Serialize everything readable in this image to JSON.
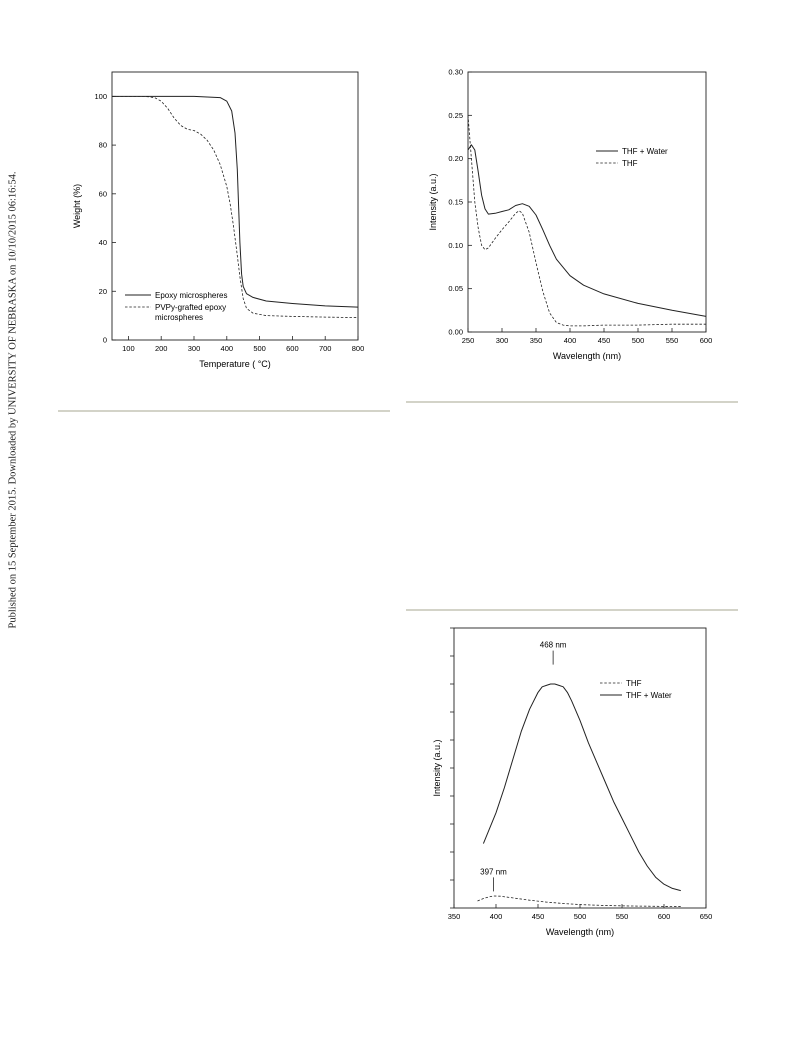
{
  "side_note": "Published on 15 September 2015. Downloaded by UNIVERSITY OF NEBRASKA on 10/10/2015 06:16:54.",
  "colors": {
    "rule": "#d3d3c8",
    "line": "#222222"
  },
  "chart_data": [
    {
      "type": "line",
      "title": "",
      "xlabel": "Temperature ( °C)",
      "ylabel": "Weight (%)",
      "xlim": [
        50,
        800
      ],
      "ylim": [
        0,
        110
      ],
      "xticks": [
        100,
        200,
        300,
        400,
        500,
        600,
        700,
        800
      ],
      "yticks": [
        0,
        20,
        40,
        60,
        80,
        100
      ],
      "legend_position": "bottom-left",
      "series": [
        {
          "name": "Epoxy microspheres",
          "style": "solid",
          "x": [
            50,
            150,
            300,
            380,
            400,
            415,
            425,
            432,
            436,
            440,
            445,
            450,
            460,
            480,
            520,
            600,
            700,
            800
          ],
          "y": [
            100,
            100,
            100,
            99.5,
            98,
            94,
            85,
            70,
            55,
            40,
            27,
            22,
            19,
            17.5,
            16,
            15,
            14,
            13.5
          ]
        },
        {
          "name": "PVPy-grafted epoxy microspheres",
          "style": "dashed",
          "x": [
            50,
            150,
            180,
            200,
            220,
            240,
            260,
            280,
            300,
            320,
            340,
            360,
            380,
            400,
            410,
            420,
            430,
            440,
            450,
            460,
            480,
            520,
            600,
            700,
            800
          ],
          "y": [
            100,
            100,
            99.5,
            98,
            95,
            91,
            88,
            86.5,
            86,
            84.5,
            82,
            78,
            72,
            63,
            56,
            47,
            37,
            26,
            17,
            13,
            11,
            10,
            9.7,
            9.4,
            9.2
          ]
        }
      ]
    },
    {
      "type": "line",
      "title": "",
      "xlabel": "Wavelength (nm)",
      "ylabel": "Intensity (a.u.)",
      "xlim": [
        250,
        600
      ],
      "ylim": [
        0,
        0.3
      ],
      "xticks": [
        250,
        300,
        350,
        400,
        450,
        500,
        550,
        600
      ],
      "yticks": [
        "0.00",
        "0.05",
        "0.10",
        "0.15",
        "0.20",
        "0.25",
        "0.30"
      ],
      "legend_position": "top-right",
      "series": [
        {
          "name": "THF + Water",
          "style": "solid",
          "x": [
            250,
            255,
            260,
            265,
            270,
            275,
            280,
            290,
            300,
            310,
            320,
            330,
            340,
            350,
            360,
            370,
            380,
            400,
            420,
            450,
            500,
            550,
            600
          ],
          "y": [
            0.21,
            0.216,
            0.21,
            0.185,
            0.158,
            0.142,
            0.136,
            0.137,
            0.139,
            0.141,
            0.146,
            0.148,
            0.145,
            0.135,
            0.118,
            0.1,
            0.084,
            0.065,
            0.054,
            0.044,
            0.033,
            0.025,
            0.018
          ]
        },
        {
          "name": "THF",
          "style": "dashed",
          "x": [
            250,
            255,
            260,
            265,
            270,
            275,
            280,
            290,
            300,
            310,
            320,
            325,
            330,
            340,
            350,
            360,
            370,
            380,
            390,
            400,
            420,
            450,
            500,
            550,
            600
          ],
          "y": [
            0.25,
            0.2,
            0.15,
            0.12,
            0.1,
            0.095,
            0.097,
            0.108,
            0.118,
            0.127,
            0.137,
            0.14,
            0.137,
            0.115,
            0.08,
            0.047,
            0.022,
            0.011,
            0.008,
            0.007,
            0.007,
            0.008,
            0.008,
            0.009,
            0.009
          ]
        }
      ]
    },
    {
      "type": "line",
      "title": "",
      "xlabel": "Wavelength (nm)",
      "ylabel": "Intensity (a.u.)",
      "xlim": [
        350,
        650
      ],
      "ylim": [
        0,
        1
      ],
      "xticks": [
        350,
        400,
        450,
        500,
        550,
        600,
        650
      ],
      "y_tick_count": 11,
      "legend_position": "top-right",
      "annotations": [
        {
          "text": "468 nm",
          "x": 468,
          "y": 0.93
        },
        {
          "text": "397 nm",
          "x": 397,
          "y": 0.12
        }
      ],
      "series": [
        {
          "name": "THF",
          "style": "dashed",
          "x": [
            378,
            385,
            392,
            397,
            405,
            420,
            440,
            460,
            480,
            500,
            530,
            560,
            590,
            620
          ],
          "y": [
            0.025,
            0.034,
            0.04,
            0.043,
            0.042,
            0.036,
            0.028,
            0.021,
            0.016,
            0.012,
            0.009,
            0.007,
            0.006,
            0.005
          ]
        },
        {
          "name": "THF + Water",
          "style": "solid",
          "x": [
            385,
            400,
            410,
            420,
            430,
            440,
            450,
            455,
            460,
            465,
            470,
            475,
            480,
            485,
            490,
            500,
            510,
            520,
            530,
            540,
            550,
            560,
            570,
            580,
            590,
            600,
            610,
            620
          ],
          "y": [
            0.23,
            0.34,
            0.43,
            0.53,
            0.63,
            0.71,
            0.77,
            0.79,
            0.795,
            0.8,
            0.8,
            0.795,
            0.79,
            0.77,
            0.74,
            0.67,
            0.59,
            0.52,
            0.45,
            0.38,
            0.32,
            0.26,
            0.2,
            0.15,
            0.11,
            0.085,
            0.07,
            0.062
          ]
        }
      ]
    }
  ]
}
